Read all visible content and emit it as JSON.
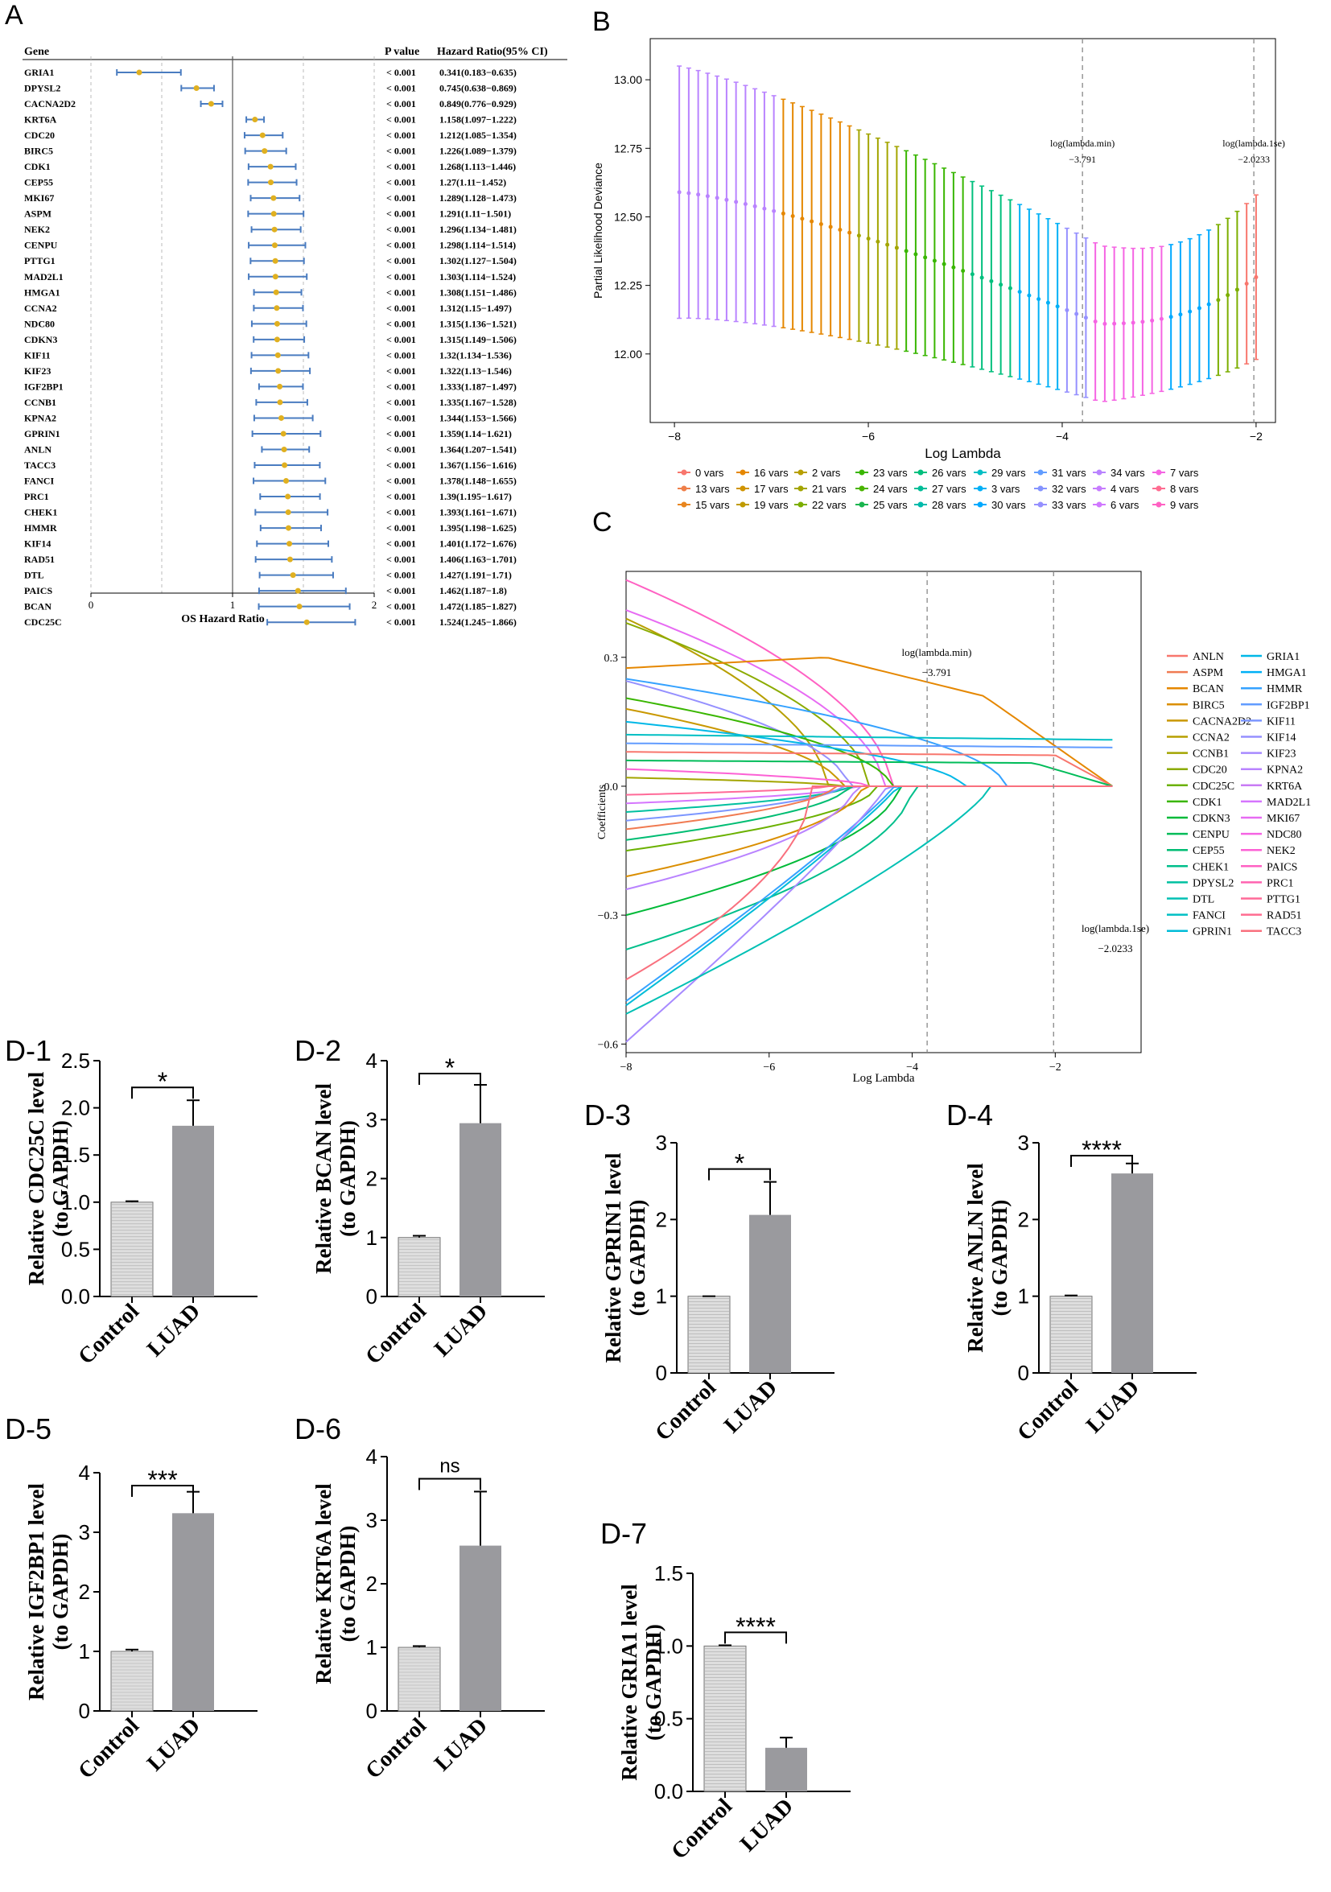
{
  "colors": {
    "fp_line": "#4a7cc0",
    "fp_point": "#e0b020",
    "bar_gray": "#9a9a9e",
    "bar_light": "#dedede",
    "text": "#000000",
    "dash": "#888888"
  },
  "panel_A": {
    "label": "A",
    "headers": {
      "gene": "Gene",
      "p": "P value",
      "hr": "Hazard Ratio(95% CI)"
    },
    "x_axis_label": "OS Hazard Ratio",
    "x_ticks": [
      "0",
      "1",
      "2"
    ],
    "genes": [
      {
        "gene": "GRIA1",
        "p": "< 0.001",
        "hr": 0.341,
        "lo": 0.183,
        "hi": 0.635,
        "text": "0.341(0.183−0.635)"
      },
      {
        "gene": "DPYSL2",
        "p": "< 0.001",
        "hr": 0.745,
        "lo": 0.638,
        "hi": 0.869,
        "text": "0.745(0.638−0.869)"
      },
      {
        "gene": "CACNA2D2",
        "p": "< 0.001",
        "hr": 0.849,
        "lo": 0.776,
        "hi": 0.929,
        "text": "0.849(0.776−0.929)"
      },
      {
        "gene": "KRT6A",
        "p": "< 0.001",
        "hr": 1.158,
        "lo": 1.097,
        "hi": 1.222,
        "text": "1.158(1.097−1.222)"
      },
      {
        "gene": "CDC20",
        "p": "< 0.001",
        "hr": 1.212,
        "lo": 1.085,
        "hi": 1.354,
        "text": "1.212(1.085−1.354)"
      },
      {
        "gene": "BIRC5",
        "p": "< 0.001",
        "hr": 1.226,
        "lo": 1.089,
        "hi": 1.379,
        "text": "1.226(1.089−1.379)"
      },
      {
        "gene": "CDK1",
        "p": "< 0.001",
        "hr": 1.268,
        "lo": 1.113,
        "hi": 1.446,
        "text": "1.268(1.113−1.446)"
      },
      {
        "gene": "CEP55",
        "p": "< 0.001",
        "hr": 1.27,
        "lo": 1.11,
        "hi": 1.452,
        "text": "1.27(1.11−1.452)"
      },
      {
        "gene": "MKI67",
        "p": "< 0.001",
        "hr": 1.289,
        "lo": 1.128,
        "hi": 1.473,
        "text": "1.289(1.128−1.473)"
      },
      {
        "gene": "ASPM",
        "p": "< 0.001",
        "hr": 1.291,
        "lo": 1.11,
        "hi": 1.501,
        "text": "1.291(1.11−1.501)"
      },
      {
        "gene": "NEK2",
        "p": "< 0.001",
        "hr": 1.296,
        "lo": 1.134,
        "hi": 1.481,
        "text": "1.296(1.134−1.481)"
      },
      {
        "gene": "CENPU",
        "p": "< 0.001",
        "hr": 1.298,
        "lo": 1.114,
        "hi": 1.514,
        "text": "1.298(1.114−1.514)"
      },
      {
        "gene": "PTTG1",
        "p": "< 0.001",
        "hr": 1.302,
        "lo": 1.127,
        "hi": 1.504,
        "text": "1.302(1.127−1.504)"
      },
      {
        "gene": "MAD2L1",
        "p": "< 0.001",
        "hr": 1.303,
        "lo": 1.114,
        "hi": 1.524,
        "text": "1.303(1.114−1.524)"
      },
      {
        "gene": "HMGA1",
        "p": "< 0.001",
        "hr": 1.308,
        "lo": 1.151,
        "hi": 1.486,
        "text": "1.308(1.151−1.486)"
      },
      {
        "gene": "CCNA2",
        "p": "< 0.001",
        "hr": 1.312,
        "lo": 1.15,
        "hi": 1.497,
        "text": "1.312(1.15−1.497)"
      },
      {
        "gene": "NDC80",
        "p": "< 0.001",
        "hr": 1.315,
        "lo": 1.136,
        "hi": 1.521,
        "text": "1.315(1.136−1.521)"
      },
      {
        "gene": "CDKN3",
        "p": "< 0.001",
        "hr": 1.315,
        "lo": 1.149,
        "hi": 1.506,
        "text": "1.315(1.149−1.506)"
      },
      {
        "gene": "KIF11",
        "p": "< 0.001",
        "hr": 1.32,
        "lo": 1.134,
        "hi": 1.536,
        "text": "1.32(1.134−1.536)"
      },
      {
        "gene": "KIF23",
        "p": "< 0.001",
        "hr": 1.322,
        "lo": 1.13,
        "hi": 1.546,
        "text": "1.322(1.13−1.546)"
      },
      {
        "gene": "IGF2BP1",
        "p": "< 0.001",
        "hr": 1.333,
        "lo": 1.187,
        "hi": 1.497,
        "text": "1.333(1.187−1.497)"
      },
      {
        "gene": "CCNB1",
        "p": "< 0.001",
        "hr": 1.335,
        "lo": 1.167,
        "hi": 1.528,
        "text": "1.335(1.167−1.528)"
      },
      {
        "gene": "KPNA2",
        "p": "< 0.001",
        "hr": 1.344,
        "lo": 1.153,
        "hi": 1.566,
        "text": "1.344(1.153−1.566)"
      },
      {
        "gene": "GPRIN1",
        "p": "< 0.001",
        "hr": 1.359,
        "lo": 1.14,
        "hi": 1.621,
        "text": "1.359(1.14−1.621)"
      },
      {
        "gene": "ANLN",
        "p": "< 0.001",
        "hr": 1.364,
        "lo": 1.207,
        "hi": 1.541,
        "text": "1.364(1.207−1.541)"
      },
      {
        "gene": "TACC3",
        "p": "< 0.001",
        "hr": 1.367,
        "lo": 1.156,
        "hi": 1.616,
        "text": "1.367(1.156−1.616)"
      },
      {
        "gene": "FANCI",
        "p": "< 0.001",
        "hr": 1.378,
        "lo": 1.148,
        "hi": 1.655,
        "text": "1.378(1.148−1.655)"
      },
      {
        "gene": "PRC1",
        "p": "< 0.001",
        "hr": 1.39,
        "lo": 1.195,
        "hi": 1.617,
        "text": "1.39(1.195−1.617)"
      },
      {
        "gene": "CHEK1",
        "p": "< 0.001",
        "hr": 1.393,
        "lo": 1.161,
        "hi": 1.671,
        "text": "1.393(1.161−1.671)"
      },
      {
        "gene": "HMMR",
        "p": "< 0.001",
        "hr": 1.395,
        "lo": 1.198,
        "hi": 1.625,
        "text": "1.395(1.198−1.625)"
      },
      {
        "gene": "KIF14",
        "p": "< 0.001",
        "hr": 1.401,
        "lo": 1.172,
        "hi": 1.676,
        "text": "1.401(1.172−1.676)"
      },
      {
        "gene": "RAD51",
        "p": "< 0.001",
        "hr": 1.406,
        "lo": 1.163,
        "hi": 1.701,
        "text": "1.406(1.163−1.701)"
      },
      {
        "gene": "DTL",
        "p": "< 0.001",
        "hr": 1.427,
        "lo": 1.191,
        "hi": 1.71,
        "text": "1.427(1.191−1.71)"
      },
      {
        "gene": "PAICS",
        "p": "< 0.001",
        "hr": 1.462,
        "lo": 1.187,
        "hi": 1.8,
        "text": "1.462(1.187−1.8)"
      },
      {
        "gene": "BCAN",
        "p": "< 0.001",
        "hr": 1.472,
        "lo": 1.185,
        "hi": 1.827,
        "text": "1.472(1.185−1.827)"
      },
      {
        "gene": "CDC25C",
        "p": "< 0.001",
        "hr": 1.524,
        "lo": 1.245,
        "hi": 1.866,
        "text": "1.524(1.245−1.866)"
      }
    ]
  },
  "panel_B": {
    "label": "B",
    "type": "errorbar-line",
    "xlabel": "Log Lambda",
    "ylabel": "Partial Likelihood Deviance",
    "xlim": [
      -8.25,
      -1.8
    ],
    "ylim": [
      11.75,
      13.15
    ],
    "x_ticks": [
      "-8",
      "-6",
      "-4",
      "-2"
    ],
    "y_ticks": [
      "12.00",
      "12.25",
      "12.50",
      "12.75",
      "13.00"
    ],
    "lambda_min": {
      "x": -3.791,
      "label1": "log(lambda.min)",
      "label2": "−3.791"
    },
    "lambda_1se": {
      "x": -2.0233,
      "label1": "log(lambda.1se)",
      "label2": "−2.0233"
    },
    "legend_items": [
      "0 vars",
      "16 vars",
      "2 vars",
      "23 vars",
      "26 vars",
      "29 vars",
      "31 vars",
      "34 vars",
      "7 vars",
      "13 vars",
      "17 vars",
      "21 vars",
      "24 vars",
      "27 vars",
      "3 vars",
      "32 vars",
      "4 vars",
      "8 vars",
      "15 vars",
      "19 vars",
      "22 vars",
      "25 vars",
      "28 vars",
      "30 vars",
      "33 vars",
      "6 vars",
      "9 vars"
    ],
    "legend_colors": [
      "#F8766D",
      "#E58700",
      "#B79F00",
      "#39B600",
      "#00BF7D",
      "#00BFC4",
      "#619CFF",
      "#B983FF",
      "#F564E3",
      "#EF7F49",
      "#D09400",
      "#A3A500",
      "#4AB400",
      "#00BD98",
      "#00B0F6",
      "#8494FF",
      "#C77CFF",
      "#FF6C91",
      "#E8851E",
      "#C09B00",
      "#7CAE00",
      "#19B54E",
      "#00BAAB",
      "#00A9FF",
      "#9590FF",
      "#D077FF",
      "#FF61C3"
    ],
    "n_points": 62
  },
  "panel_C": {
    "label": "C",
    "type": "line",
    "xlabel": "Log Lambda",
    "ylabel": "Coefficients",
    "xlim": [
      -8,
      -0.8
    ],
    "ylim": [
      -0.62,
      0.5
    ],
    "x_ticks": [
      "-8",
      "-6",
      "-4",
      "-2"
    ],
    "y_ticks": [
      "-0.6",
      "-0.3",
      "0.0",
      "0.3"
    ],
    "lambda_min": {
      "x": -3.791,
      "label1": "log(lambda.min)",
      "label2": "−3.791"
    },
    "lambda_1se": {
      "x": -2.0233,
      "label1": "log(lambda.1se)",
      "label2": "−2.0233"
    },
    "legend": [
      {
        "name": "ANLN",
        "color": "#F8766D"
      },
      {
        "name": "ASPM",
        "color": "#F07B52"
      },
      {
        "name": "BCAN",
        "color": "#E58700"
      },
      {
        "name": "BIRC5",
        "color": "#DA8E00"
      },
      {
        "name": "CACNA2D2",
        "color": "#C99800"
      },
      {
        "name": "CCNA2",
        "color": "#B79F00"
      },
      {
        "name": "CCNB1",
        "color": "#A3A500"
      },
      {
        "name": "CDC20",
        "color": "#8BAB00"
      },
      {
        "name": "CDC25C",
        "color": "#6BB100"
      },
      {
        "name": "CDK1",
        "color": "#39B600"
      },
      {
        "name": "CDKN3",
        "color": "#00BA38"
      },
      {
        "name": "CENPU",
        "color": "#00BC59"
      },
      {
        "name": "CEP55",
        "color": "#00BD73"
      },
      {
        "name": "CHEK1",
        "color": "#00BF8B"
      },
      {
        "name": "DPYSL2",
        "color": "#00C0A0"
      },
      {
        "name": "DTL",
        "color": "#00C0B4"
      },
      {
        "name": "FANCI",
        "color": "#00BFC4"
      },
      {
        "name": "GPRIN1",
        "color": "#00BCD8"
      },
      {
        "name": "GRIA1",
        "color": "#00B8E7"
      },
      {
        "name": "HMGA1",
        "color": "#00B0F6"
      },
      {
        "name": "HMMR",
        "color": "#35A2FF"
      },
      {
        "name": "IGF2BP1",
        "color": "#619CFF"
      },
      {
        "name": "KIF11",
        "color": "#7C96FF"
      },
      {
        "name": "KIF14",
        "color": "#9590FF"
      },
      {
        "name": "KIF23",
        "color": "#A78AFF"
      },
      {
        "name": "KPNA2",
        "color": "#B983FF"
      },
      {
        "name": "KRT6A",
        "color": "#C97BF5"
      },
      {
        "name": "MAD2L1",
        "color": "#D575FE"
      },
      {
        "name": "MKI67",
        "color": "#E76BF3"
      },
      {
        "name": "NDC80",
        "color": "#F564E3"
      },
      {
        "name": "NEK2",
        "color": "#FC61D5"
      },
      {
        "name": "PAICS",
        "color": "#FF61C3"
      },
      {
        "name": "PRC1",
        "color": "#FF63B0"
      },
      {
        "name": "PTTG1",
        "color": "#FF6A98"
      },
      {
        "name": "RAD51",
        "color": "#FF6C91"
      },
      {
        "name": "TACC3",
        "color": "#F9707E"
      }
    ],
    "paths": [
      {
        "start": 0.48,
        "zero_at": -4.3,
        "mode": "drop",
        "color": "#FF61C3"
      },
      {
        "start": 0.41,
        "zero_at": -4.4,
        "mode": "drop",
        "color": "#E76BF3"
      },
      {
        "start": 0.39,
        "zero_at": -5.2,
        "mode": "drop",
        "color": "#B79F00"
      },
      {
        "start": 0.38,
        "zero_at": -4.6,
        "mode": "drop",
        "color": "#8BAB00"
      },
      {
        "start": 0.275,
        "zero_at": -1.2,
        "mode": "bcan",
        "color": "#E58700"
      },
      {
        "start": 0.25,
        "zero_at": -2.7,
        "mode": "drop",
        "color": "#35A2FF"
      },
      {
        "start": 0.245,
        "zero_at": -4.9,
        "mode": "drop",
        "color": "#9590FF"
      },
      {
        "start": 0.205,
        "zero_at": -4.3,
        "mode": "drop",
        "color": "#39B600"
      },
      {
        "start": 0.18,
        "zero_at": -5.0,
        "mode": "drop",
        "color": "#C99800"
      },
      {
        "start": 0.15,
        "zero_at": -3.3,
        "mode": "drop",
        "color": "#00B8E7"
      },
      {
        "start": 0.12,
        "zero_at": -1.2,
        "mode": "flat",
        "color": "#00BFC4"
      },
      {
        "start": 0.1,
        "zero_at": -1.2,
        "mode": "flat",
        "color": "#619CFF"
      },
      {
        "start": 0.08,
        "zero_at": -2.0,
        "mode": "flat",
        "color": "#F8766D"
      },
      {
        "start": 0.06,
        "zero_at": -2.3,
        "mode": "flat",
        "color": "#00BC59"
      },
      {
        "start": 0.04,
        "zero_at": -4.6,
        "mode": "drop",
        "color": "#FC61D5"
      },
      {
        "start": 0.02,
        "zero_at": -5.0,
        "mode": "drop",
        "color": "#A3A500"
      },
      {
        "start": -0.02,
        "zero_at": -5.2,
        "mode": "drop",
        "color": "#FF6A98"
      },
      {
        "start": -0.04,
        "zero_at": -4.8,
        "mode": "drop",
        "color": "#D575FE"
      },
      {
        "start": -0.06,
        "zero_at": -4.9,
        "mode": "drop",
        "color": "#00C0A0"
      },
      {
        "start": -0.08,
        "zero_at": -5.0,
        "mode": "drop",
        "color": "#7C96FF"
      },
      {
        "start": -0.1,
        "zero_at": -5.1,
        "mode": "drop",
        "color": "#F07B52"
      },
      {
        "start": -0.125,
        "zero_at": -4.9,
        "mode": "drop",
        "color": "#00BD73"
      },
      {
        "start": -0.15,
        "zero_at": -4.5,
        "mode": "drop",
        "color": "#6BB100"
      },
      {
        "start": -0.21,
        "zero_at": -4.7,
        "mode": "drop",
        "color": "#DA8E00"
      },
      {
        "start": -0.24,
        "zero_at": -4.8,
        "mode": "drop",
        "color": "#B983FF"
      },
      {
        "start": -0.3,
        "zero_at": -4.2,
        "mode": "drop",
        "color": "#00BA38"
      },
      {
        "start": -0.38,
        "zero_at": -4.0,
        "mode": "drop",
        "color": "#00BF8B"
      },
      {
        "start": -0.51,
        "zero_at": -4.2,
        "mode": "slow",
        "color": "#00BCD8"
      },
      {
        "start": -0.5,
        "zero_at": -4.25,
        "mode": "slow",
        "color": "#35A2FF"
      },
      {
        "start": -0.595,
        "zero_at": -4.35,
        "mode": "slow",
        "color": "#A78AFF"
      },
      {
        "start": -0.53,
        "zero_at": -2.9,
        "mode": "gria",
        "color": "#00C0B4"
      },
      {
        "start": -0.45,
        "zero_at": -5.4,
        "mode": "drop",
        "color": "#F9707E"
      }
    ]
  },
  "bars": [
    {
      "id": "D-1",
      "ylabel1": "Relative CDC25C level",
      "ylabel2": "(to GAPDH)",
      "ylim": [
        0,
        2.5
      ],
      "ticks": [
        "0.0",
        "0.5",
        "1.0",
        "1.5",
        "2.0",
        "2.5"
      ],
      "categories": [
        "Control",
        "LUAD"
      ],
      "values": [
        1.0,
        1.81
      ],
      "errors": [
        0.01,
        0.27
      ],
      "sig": "*"
    },
    {
      "id": "D-2",
      "ylabel1": "Relative BCAN level",
      "ylabel2": "(to GAPDH)",
      "ylim": [
        0,
        4
      ],
      "ticks": [
        "0",
        "1",
        "2",
        "3",
        "4"
      ],
      "categories": [
        "Control",
        "LUAD"
      ],
      "values": [
        1.0,
        2.94
      ],
      "errors": [
        0.03,
        0.65
      ],
      "sig": "*"
    },
    {
      "id": "D-3",
      "ylabel1": "Relative GPRIN1 level",
      "ylabel2": "(to GAPDH)",
      "ylim": [
        0,
        3
      ],
      "ticks": [
        "0",
        "1",
        "2",
        "3"
      ],
      "categories": [
        "Control",
        "LUAD"
      ],
      "values": [
        1.0,
        2.06
      ],
      "errors": [
        0.0,
        0.43
      ],
      "sig": "*"
    },
    {
      "id": "D-4",
      "ylabel1": "Relative ANLN level",
      "ylabel2": "(to GAPDH)",
      "ylim": [
        0,
        3
      ],
      "ticks": [
        "0",
        "1",
        "2",
        "3"
      ],
      "categories": [
        "Control",
        "LUAD"
      ],
      "values": [
        1.0,
        2.6
      ],
      "errors": [
        0.01,
        0.13
      ],
      "sig": "****"
    },
    {
      "id": "D-5",
      "ylabel1": "Relative IGF2BP1 level",
      "ylabel2": "(to GAPDH)",
      "ylim": [
        0,
        4
      ],
      "ticks": [
        "0",
        "1",
        "2",
        "3",
        "4"
      ],
      "categories": [
        "Control",
        "LUAD"
      ],
      "values": [
        1.0,
        3.32
      ],
      "errors": [
        0.03,
        0.36
      ],
      "sig": "***"
    },
    {
      "id": "D-6",
      "ylabel1": "Relative KRT6A level",
      "ylabel2": "(to GAPDH)",
      "ylim": [
        0,
        4
      ],
      "ticks": [
        "0",
        "1",
        "2",
        "3",
        "4"
      ],
      "categories": [
        "Control",
        "LUAD"
      ],
      "values": [
        1.0,
        2.6
      ],
      "errors": [
        0.02,
        0.85
      ],
      "sig": "ns"
    },
    {
      "id": "D-7",
      "ylabel1": "Relative GRIA1 level",
      "ylabel2": "(to GAPDH)",
      "ylim": [
        0,
        1.5
      ],
      "ticks": [
        "0.0",
        "0.5",
        "1.0",
        "1.5"
      ],
      "categories": [
        "Control",
        "LUAD"
      ],
      "values": [
        1.0,
        0.3
      ],
      "errors": [
        0.005,
        0.07
      ],
      "sig": "****"
    }
  ]
}
